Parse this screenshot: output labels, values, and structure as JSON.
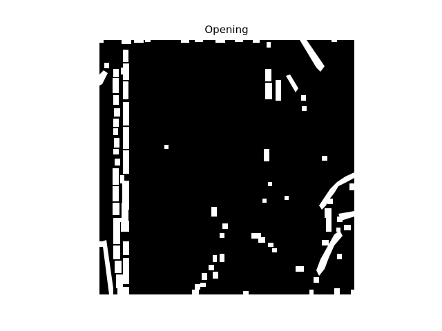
{
  "figure": {
    "title": "Opening"
  },
  "image": {
    "description_kind": "binary-morphology-result",
    "background_color": "#000000",
    "foreground_color": "#ffffff"
  }
}
